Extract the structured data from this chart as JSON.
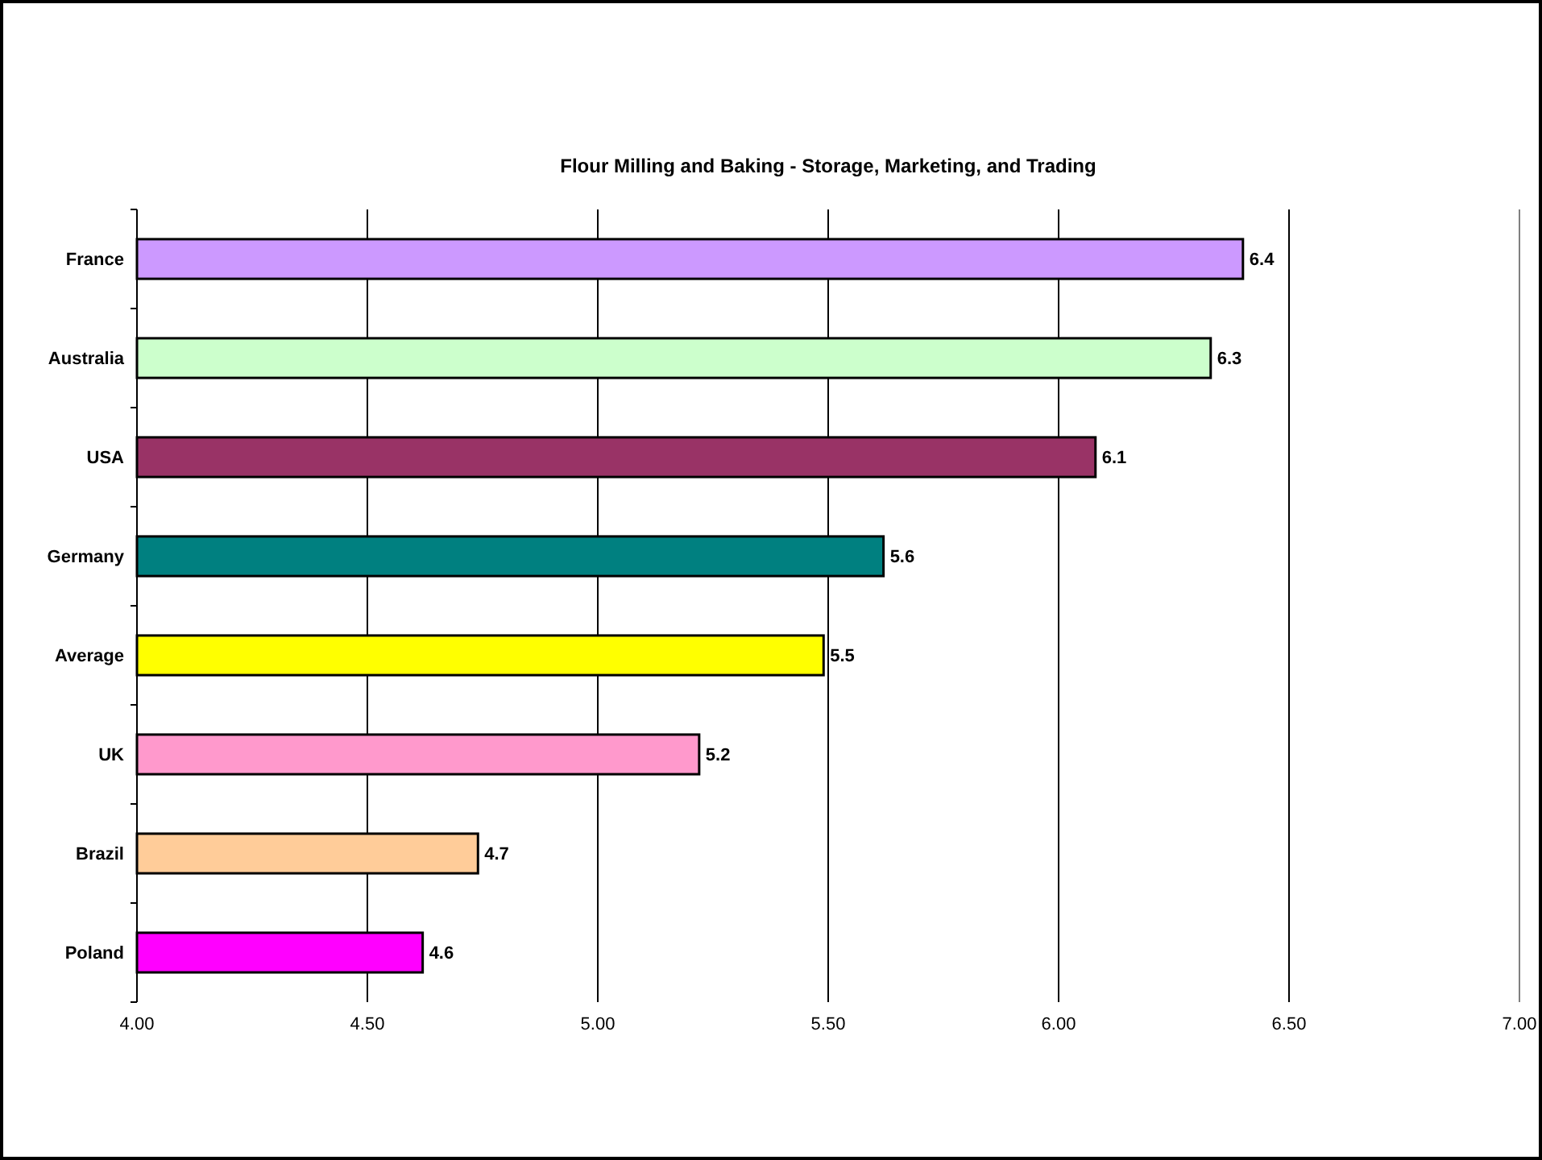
{
  "chart_data": {
    "type": "bar",
    "orientation": "horizontal",
    "title": "Flour Milling and Baking - Storage, Marketing, and Trading",
    "categories": [
      "France",
      "Australia",
      "USA",
      "Germany",
      "Average",
      "UK",
      "Brazil",
      "Poland"
    ],
    "values": [
      6.4,
      6.33,
      6.08,
      5.62,
      5.49,
      5.22,
      4.74,
      4.62
    ],
    "value_labels": [
      "6.4",
      "6.3",
      "6.1",
      "5.6",
      "5.5",
      "5.2",
      "4.7",
      "4.6"
    ],
    "colors": [
      "#cc99ff",
      "#ccffcc",
      "#993366",
      "#008080",
      "#ffff00",
      "#ff99cc",
      "#ffcc99",
      "#ff00ff"
    ],
    "xlim": [
      4,
      7
    ],
    "xticks": [
      {
        "value": 4,
        "label": "4.00"
      },
      {
        "value": 4.5,
        "label": "4.50"
      },
      {
        "value": 5,
        "label": "5.00"
      },
      {
        "value": 5.5,
        "label": "5.50"
      },
      {
        "value": 6,
        "label": "6.00"
      },
      {
        "value": 6.5,
        "label": "6.50"
      },
      {
        "value": 7,
        "label": "7.00"
      }
    ],
    "grid": "x"
  }
}
